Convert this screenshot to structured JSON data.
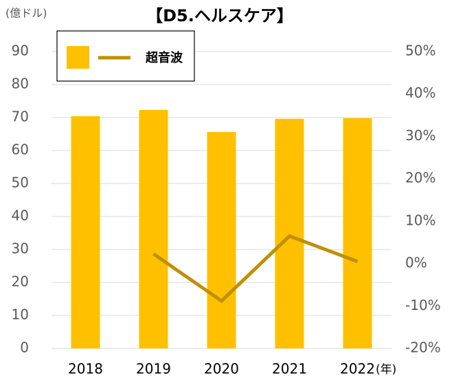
{
  "chart_data": {
    "type": "bar-line",
    "title": "【D5.ヘルスケア】",
    "y_label": "(億ドル)",
    "x_label": "(年)",
    "categories": [
      "2018",
      "2019",
      "2020",
      "2021",
      "2022"
    ],
    "series": [
      {
        "type": "bar",
        "color": "#ffc000",
        "values": [
          70.4,
          72.3,
          65.6,
          69.6,
          69.8
        ]
      },
      {
        "type": "line",
        "name": "超音波",
        "color": "#bf9000",
        "axis": "y2",
        "values": [
          null,
          2.3,
          -8.8,
          6.5,
          0.5
        ]
      }
    ],
    "ylim": [
      0,
      90
    ],
    "yticks": [
      0,
      10,
      20,
      30,
      40,
      50,
      60,
      70,
      80,
      90
    ],
    "y2lim": [
      -20,
      50
    ],
    "y2ticks": [
      {
        "value": -20,
        "label": "-20%"
      },
      {
        "value": -10,
        "label": "-10%"
      },
      {
        "value": 0,
        "label": "0%"
      },
      {
        "value": 10,
        "label": "10%"
      },
      {
        "value": 20,
        "label": "20%"
      },
      {
        "value": 30,
        "label": "30%"
      },
      {
        "value": 40,
        "label": "40%"
      },
      {
        "value": 50,
        "label": "50%"
      }
    ],
    "grid": true
  }
}
